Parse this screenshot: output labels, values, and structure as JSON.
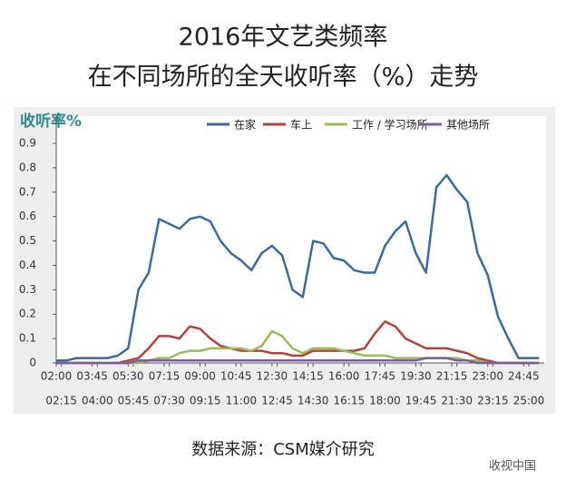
{
  "chart_data": {
    "type": "line",
    "title": "2016年文艺类频率",
    "subtitle": "在不同场所的全天收听率（%）走势",
    "y_label": "收听率%",
    "source": "数据来源：CSM媒介研究",
    "watermark": "收视中国",
    "x": [
      2,
      2.5,
      3,
      3.5,
      4,
      4.5,
      5,
      5.5,
      6,
      6.5,
      7,
      7.5,
      8,
      8.5,
      9,
      9.5,
      10,
      10.5,
      11,
      11.5,
      12,
      12.5,
      13,
      13.5,
      14,
      14.5,
      15,
      15.5,
      16,
      16.5,
      17,
      17.5,
      18,
      18.5,
      19,
      19.5,
      20,
      20.5,
      21,
      21.5,
      22,
      22.5,
      23,
      23.5,
      24,
      24.5,
      25,
      25.5
    ],
    "xlim": [
      2,
      25.75
    ],
    "xticks": [
      {
        "value": 2,
        "label": "02:00"
      },
      {
        "value": 2.25,
        "label": "02:15"
      },
      {
        "value": 3.75,
        "label": "03:45"
      },
      {
        "value": 4,
        "label": "04:00"
      },
      {
        "value": 5.5,
        "label": "05:30"
      },
      {
        "value": 5.75,
        "label": "05:45"
      },
      {
        "value": 7.25,
        "label": "07:15"
      },
      {
        "value": 7.5,
        "label": "07:30"
      },
      {
        "value": 9,
        "label": "09:00"
      },
      {
        "value": 9.25,
        "label": "09:15"
      },
      {
        "value": 10.75,
        "label": "10:45"
      },
      {
        "value": 11,
        "label": "11:00"
      },
      {
        "value": 12.5,
        "label": "12:30"
      },
      {
        "value": 12.75,
        "label": "12:45"
      },
      {
        "value": 14.25,
        "label": "14:15"
      },
      {
        "value": 14.5,
        "label": "14:30"
      },
      {
        "value": 16,
        "label": "16:00"
      },
      {
        "value": 16.25,
        "label": "16:15"
      },
      {
        "value": 17.75,
        "label": "17:45"
      },
      {
        "value": 18,
        "label": "18:00"
      },
      {
        "value": 19.5,
        "label": "19:30"
      },
      {
        "value": 19.75,
        "label": "19:45"
      },
      {
        "value": 21.25,
        "label": "21:15"
      },
      {
        "value": 21.5,
        "label": "21:30"
      },
      {
        "value": 23,
        "label": "23:00"
      },
      {
        "value": 23.25,
        "label": "23:15"
      },
      {
        "value": 24.75,
        "label": "24:45"
      },
      {
        "value": 25,
        "label": "25:00"
      }
    ],
    "ylim": [
      0,
      0.9
    ],
    "yticks": [
      0,
      0.1,
      0.2,
      0.3,
      0.4,
      0.5,
      0.6,
      0.7,
      0.8,
      0.9
    ],
    "grid": false,
    "series": [
      {
        "name": "在家",
        "color": "#3d6a99",
        "values": [
          0.01,
          0.01,
          0.02,
          0.02,
          0.02,
          0.02,
          0.03,
          0.06,
          0.3,
          0.37,
          0.59,
          0.57,
          0.55,
          0.59,
          0.6,
          0.58,
          0.5,
          0.45,
          0.42,
          0.38,
          0.45,
          0.48,
          0.44,
          0.3,
          0.27,
          0.5,
          0.49,
          0.43,
          0.42,
          0.38,
          0.37,
          0.37,
          0.48,
          0.54,
          0.58,
          0.45,
          0.37,
          0.72,
          0.77,
          0.71,
          0.66,
          0.45,
          0.36,
          0.19,
          0.1,
          0.02,
          0.02,
          0.02
        ]
      },
      {
        "name": "车上",
        "color": "#b0443c",
        "values": [
          0,
          0,
          0,
          0,
          0,
          0,
          0,
          0.01,
          0.02,
          0.06,
          0.11,
          0.11,
          0.1,
          0.15,
          0.14,
          0.1,
          0.07,
          0.06,
          0.05,
          0.05,
          0.05,
          0.04,
          0.04,
          0.03,
          0.03,
          0.05,
          0.05,
          0.05,
          0.05,
          0.05,
          0.06,
          0.12,
          0.17,
          0.15,
          0.1,
          0.08,
          0.06,
          0.06,
          0.06,
          0.05,
          0.04,
          0.02,
          0.01,
          0,
          0,
          0,
          0,
          0
        ]
      },
      {
        "name": "工作 / 学习场所",
        "color": "#9bbb59",
        "values": [
          0,
          0,
          0,
          0,
          0,
          0,
          0,
          0,
          0,
          0.01,
          0.02,
          0.02,
          0.04,
          0.05,
          0.05,
          0.06,
          0.06,
          0.06,
          0.06,
          0.05,
          0.07,
          0.13,
          0.11,
          0.06,
          0.04,
          0.06,
          0.06,
          0.06,
          0.05,
          0.04,
          0.03,
          0.03,
          0.03,
          0.02,
          0.02,
          0.02,
          0.02,
          0.02,
          0.02,
          0.02,
          0.01,
          0.01,
          0,
          0,
          0,
          0,
          0,
          0
        ]
      },
      {
        "name": "其他场所",
        "color": "#7a5ca0",
        "values": [
          0,
          0,
          0,
          0,
          0,
          0,
          0,
          0,
          0.01,
          0.01,
          0.01,
          0.01,
          0.01,
          0.01,
          0.01,
          0.01,
          0.01,
          0.01,
          0.01,
          0.01,
          0.01,
          0.01,
          0.01,
          0.01,
          0.01,
          0.01,
          0.01,
          0.01,
          0.01,
          0.01,
          0.01,
          0.01,
          0.01,
          0.01,
          0.01,
          0.01,
          0.02,
          0.02,
          0.02,
          0.01,
          0.01,
          0,
          0,
          0,
          0,
          0,
          0,
          0
        ]
      }
    ]
  }
}
